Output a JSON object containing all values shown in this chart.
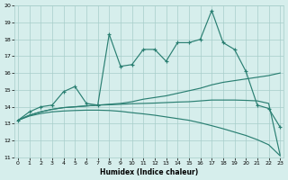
{
  "xlabel": "Humidex (Indice chaleur)",
  "x_values": [
    0,
    1,
    2,
    3,
    4,
    5,
    6,
    7,
    8,
    9,
    10,
    11,
    12,
    13,
    14,
    15,
    16,
    17,
    18,
    19,
    20,
    21,
    22,
    23
  ],
  "main_line": [
    13.2,
    13.7,
    14.0,
    14.1,
    14.9,
    15.2,
    14.2,
    14.1,
    18.3,
    16.4,
    16.5,
    17.4,
    17.4,
    16.7,
    17.8,
    17.8,
    18.0,
    19.7,
    17.8,
    17.4,
    16.1,
    14.1,
    13.9,
    12.8
  ],
  "line_smooth1": [
    13.2,
    13.5,
    13.7,
    13.85,
    13.95,
    14.0,
    14.05,
    14.1,
    14.15,
    14.2,
    14.3,
    14.45,
    14.55,
    14.65,
    14.8,
    14.95,
    15.1,
    15.3,
    15.45,
    15.55,
    15.65,
    15.75,
    15.85,
    16.0
  ],
  "line_smooth2": [
    13.2,
    13.5,
    13.7,
    13.85,
    13.95,
    14.0,
    14.05,
    14.1,
    14.12,
    14.15,
    14.18,
    14.2,
    14.22,
    14.25,
    14.28,
    14.3,
    14.35,
    14.4,
    14.4,
    14.4,
    14.38,
    14.35,
    14.2,
    11.15
  ],
  "line_smooth3": [
    13.2,
    13.45,
    13.6,
    13.7,
    13.75,
    13.78,
    13.8,
    13.8,
    13.78,
    13.73,
    13.65,
    13.58,
    13.5,
    13.4,
    13.3,
    13.2,
    13.05,
    12.88,
    12.7,
    12.5,
    12.3,
    12.05,
    11.75,
    11.1
  ],
  "ylim": [
    11,
    20
  ],
  "xlim": [
    -0.3,
    23.3
  ],
  "yticks": [
    11,
    12,
    13,
    14,
    15,
    16,
    17,
    18,
    19,
    20
  ],
  "xticks": [
    0,
    1,
    2,
    3,
    4,
    5,
    6,
    7,
    8,
    9,
    10,
    11,
    12,
    13,
    14,
    15,
    16,
    17,
    18,
    19,
    20,
    21,
    22,
    23
  ],
  "line_color": "#2a7f72",
  "bg_color": "#d6eeec",
  "grid_color": "#a8ceca"
}
